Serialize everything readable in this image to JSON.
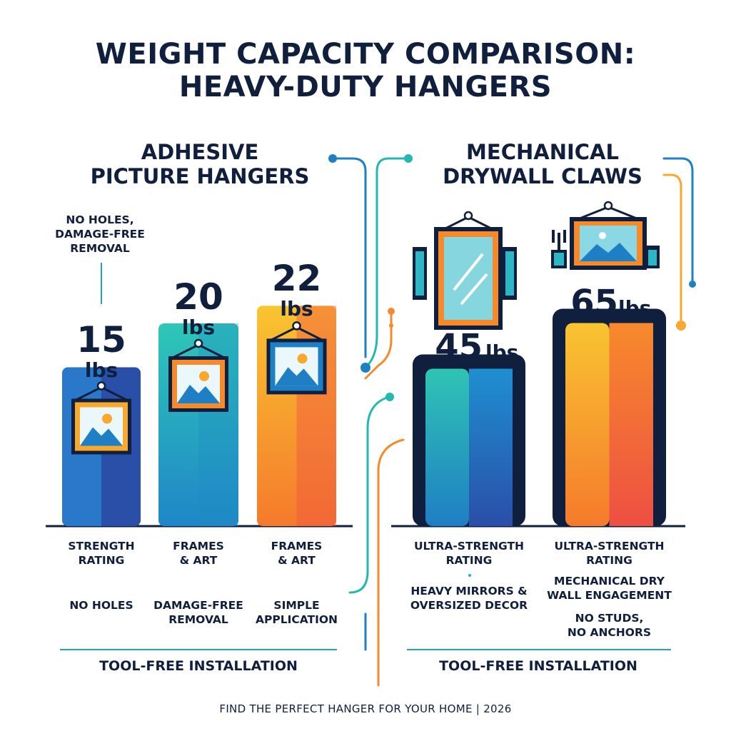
{
  "title_line1": "WEIGHT CAPACITY COMPARISON:",
  "title_line2": "HEAVY-DUTY HANGERS",
  "left_section": {
    "title_line1": "ADHESIVE",
    "title_line2": "PICTURE HANGERS",
    "note_line1": "NO HOLES,",
    "note_line2": "DAMAGE-FREE",
    "note_line3": "REMOVAL",
    "footer": "TOOL-FREE INSTALLATION"
  },
  "right_section": {
    "title_line1": "MECHANICAL",
    "title_line2": "DRYWALL CLAWS",
    "footer": "TOOL-FREE INSTALLATION"
  },
  "credit": "FIND THE PERFECT HANGER FOR YOUR HOME  | 2026",
  "colors": {
    "navy": "#0f1f3d",
    "blue": "#1f7fc4",
    "teal": "#23b8b0",
    "yellow": "#f8c232",
    "orange": "#f58a2c",
    "red": "#ef5540"
  },
  "chart_data": {
    "type": "bar",
    "title": "WEIGHT CAPACITY COMPARISON: HEAVY-DUTY HANGERS",
    "unit": "lbs",
    "groups": [
      "ADHESIVE PICTURE HANGERS",
      "MECHANICAL DRYWALL CLAWS"
    ],
    "bars": [
      {
        "group": 0,
        "value": 15,
        "value_label": "15",
        "unit_label": "lbs",
        "icon": "picture-frame-icon",
        "desc1": "STRENGTH\nRATING",
        "desc2": "NO HOLES",
        "style": "blue"
      },
      {
        "group": 0,
        "value": 20,
        "value_label": "20",
        "unit_label": "lbs",
        "icon": "picture-frame-icon",
        "desc1": "FRAMES\n& ART",
        "desc2": "DAMAGE-FREE\nREMOVAL",
        "style": "teal"
      },
      {
        "group": 0,
        "value": 22,
        "value_label": "22",
        "unit_label": "lbs",
        "icon": "picture-frame-icon",
        "desc1": "FRAMES\n& ART",
        "desc2": "SIMPLE\nAPPLICATION",
        "style": "warm"
      },
      {
        "group": 1,
        "value": 45,
        "value_label": "45",
        "unit_label": "lbs",
        "icon": "mirror-icon",
        "desc1": "ULTRA-STRENGTH\nRATING",
        "desc2": "HEAVY MIRRORS &\nOVERSIZED DECOR",
        "style": "cool-framed"
      },
      {
        "group": 1,
        "value": 65,
        "value_label": "65",
        "unit_label": "lbs",
        "icon": "landscape-frame-icon",
        "desc1": "ULTRA-STRENGTH\nRATING",
        "desc2": "MECHANICAL DRY\nWALL ENGAGEMENT",
        "desc3": "NO STUDS,\nNO ANCHORS",
        "style": "warm-framed"
      }
    ]
  }
}
